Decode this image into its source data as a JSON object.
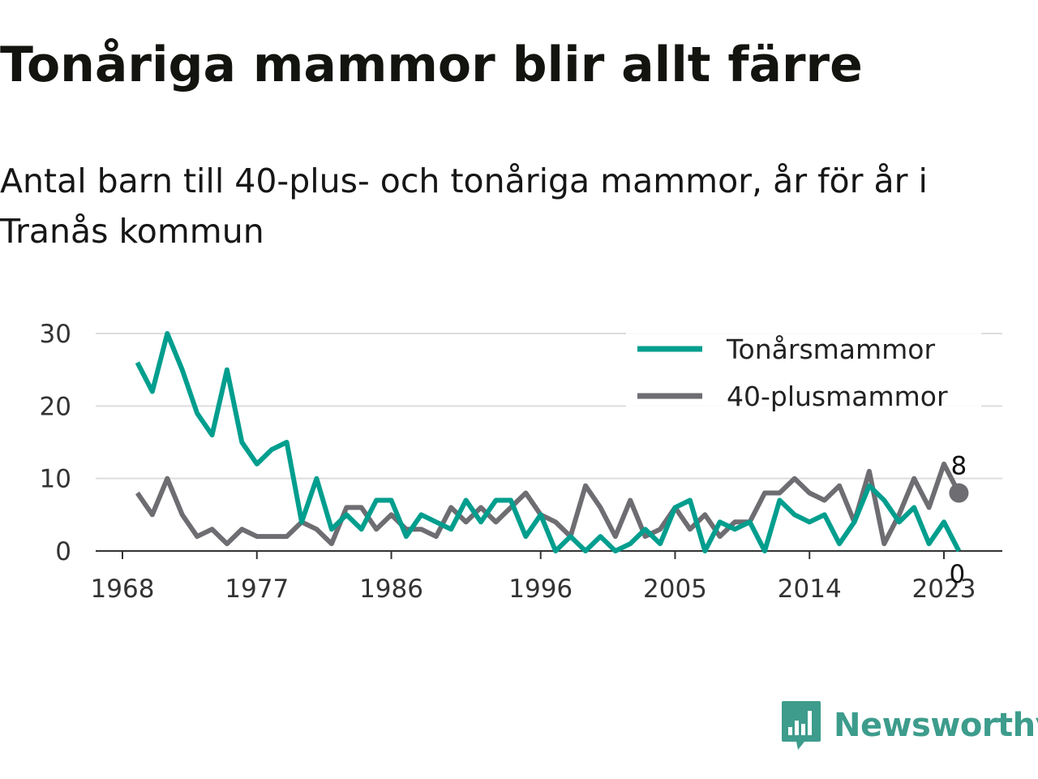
{
  "title": "Tonåriga mammor blir allt färre",
  "subtitle": "Antal barn till 40-plus- och tonåriga mammor, år för år i Tranås kommun",
  "brand": "Newsworthy",
  "chart_data": {
    "type": "line",
    "x": [
      1969,
      1970,
      1971,
      1972,
      1973,
      1974,
      1975,
      1976,
      1977,
      1978,
      1979,
      1980,
      1981,
      1982,
      1983,
      1984,
      1985,
      1986,
      1987,
      1988,
      1989,
      1990,
      1991,
      1992,
      1993,
      1994,
      1995,
      1996,
      1997,
      1998,
      1999,
      2000,
      2001,
      2002,
      2003,
      2004,
      2005,
      2006,
      2007,
      2008,
      2009,
      2010,
      2011,
      2012,
      2013,
      2014,
      2015,
      2016,
      2017,
      2018,
      2019,
      2020,
      2021,
      2022,
      2023,
      2024
    ],
    "series": [
      {
        "name": "Tonårsmammor",
        "color": "#009e8e",
        "values": [
          26,
          22,
          30,
          25,
          19,
          16,
          25,
          15,
          12,
          14,
          15,
          4,
          10,
          3,
          5,
          3,
          7,
          7,
          2,
          5,
          4,
          3,
          7,
          4,
          7,
          7,
          2,
          5,
          0,
          2,
          0,
          2,
          0,
          1,
          3,
          1,
          6,
          7,
          0,
          4,
          3,
          4,
          0,
          7,
          5,
          4,
          5,
          1,
          4,
          9,
          7,
          4,
          6,
          1,
          4,
          0
        ]
      },
      {
        "name": "40-plusmammor",
        "color": "#6d6d72",
        "values": [
          8,
          5,
          10,
          5,
          2,
          3,
          1,
          3,
          2,
          2,
          2,
          4,
          3,
          1,
          6,
          6,
          3,
          5,
          3,
          3,
          2,
          6,
          4,
          6,
          4,
          6,
          8,
          5,
          4,
          2,
          9,
          6,
          2,
          7,
          2,
          3,
          6,
          3,
          5,
          2,
          4,
          4,
          8,
          8,
          10,
          8,
          7,
          9,
          4,
          11,
          1,
          5,
          10,
          6,
          12,
          8
        ]
      }
    ],
    "xticks": [
      "1968",
      "1977",
      "1986",
      "1996",
      "2005",
      "2014",
      "2023"
    ],
    "yticks": [
      "0",
      "10",
      "20",
      "30"
    ],
    "ylim": [
      0,
      30
    ],
    "end_labels": [
      "8",
      "0"
    ],
    "legend_position": "top-right",
    "grid": true
  }
}
